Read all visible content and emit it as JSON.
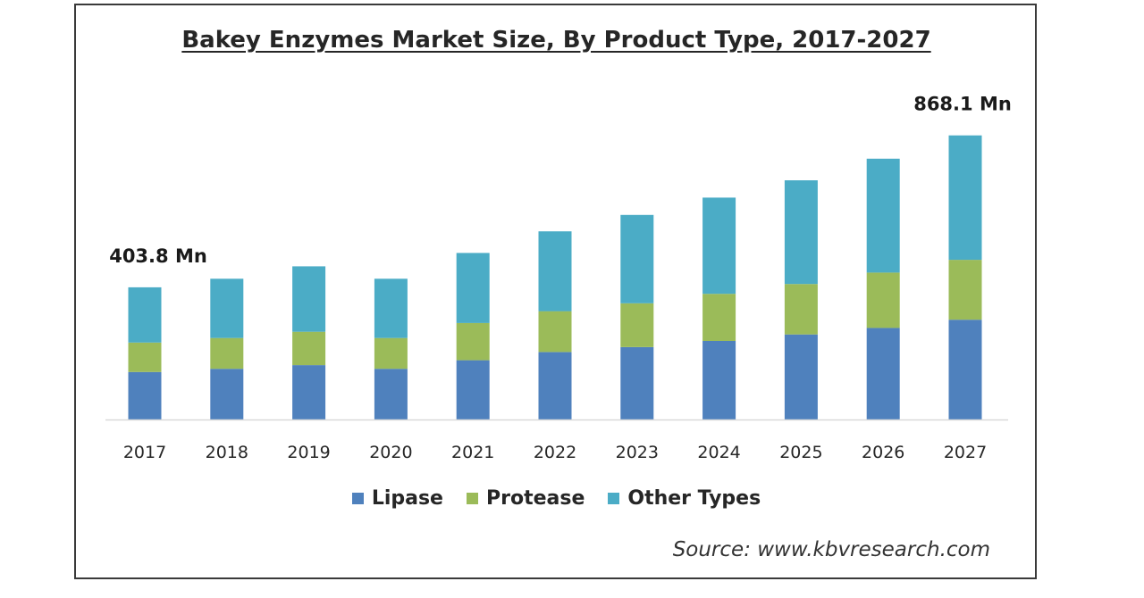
{
  "chart_data": {
    "type": "bar",
    "stacked": true,
    "title": "Bakey Enzymes Market Size, By Product Type, 2017-2027",
    "categories": [
      "2017",
      "2018",
      "2019",
      "2020",
      "2021",
      "2022",
      "2023",
      "2024",
      "2025",
      "2026",
      "2027"
    ],
    "series": [
      {
        "name": "Lipase",
        "color": "#4f81bd",
        "values": [
          145,
          155,
          166,
          155,
          181,
          206,
          221,
          240,
          260,
          280,
          305
        ]
      },
      {
        "name": "Protease",
        "color": "#9bbb59",
        "values": [
          90,
          94,
          102,
          94,
          114,
          125,
          134,
          144,
          154,
          169,
          183
        ]
      },
      {
        "name": "Other Types",
        "color": "#4bacc6",
        "values": [
          168.8,
          181,
          200,
          181,
          214,
          244,
          270,
          294,
          317,
          348,
          380.1
        ]
      }
    ],
    "annotations": [
      {
        "category": "2017",
        "text": "403.8 Mn"
      },
      {
        "category": "2027",
        "text": "868.1 Mn"
      }
    ],
    "legend_position": "bottom",
    "grid": false,
    "ylim": [
      0,
      900
    ],
    "source": "Source: www.kbvresearch.com"
  }
}
